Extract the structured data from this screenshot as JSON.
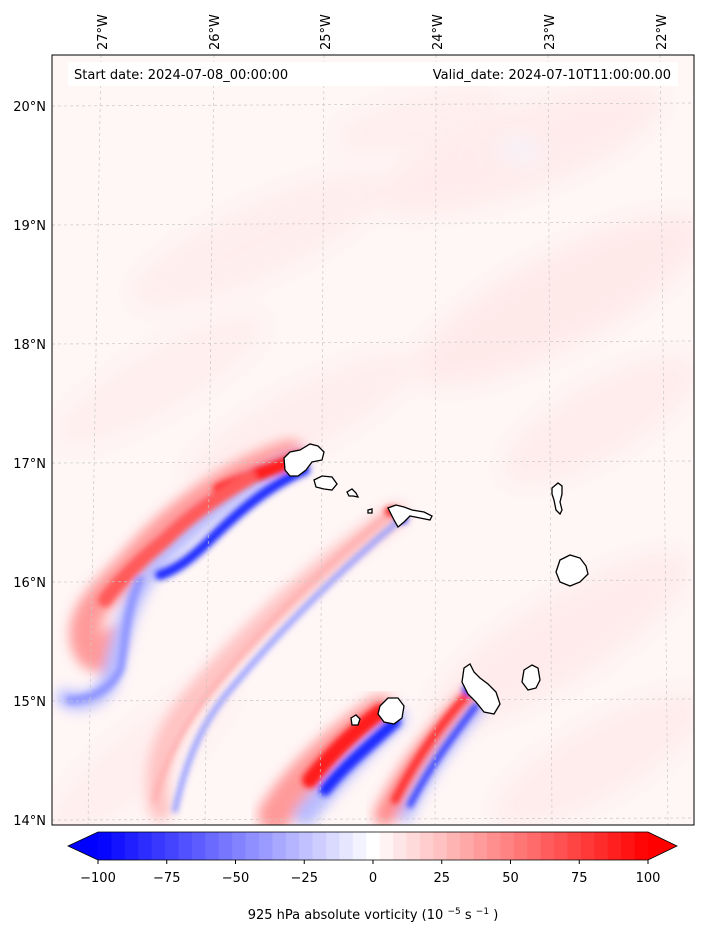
{
  "header": {
    "start_label": "Start date: 2024-07-08_00:00:00",
    "valid_label": "Valid_date: 2024-07-10T11:00:00.00"
  },
  "axes": {
    "lon_ticks": [
      "27°W",
      "26°W",
      "25°W",
      "24°W",
      "23°W",
      "22°W"
    ],
    "lat_ticks": [
      "20°N",
      "19°N",
      "18°N",
      "17°N",
      "16°N",
      "15°N",
      "14°N"
    ],
    "grid": true,
    "lon_range": [
      -27.4,
      -21.8
    ],
    "lat_range": [
      13.95,
      20.45
    ]
  },
  "field": {
    "variable": "925 hPa absolute vorticity",
    "units_prefix": "(10",
    "units_exp1": "−5",
    "units_mid": "s",
    "units_exp2": "−1",
    "units_suffix": ")"
  },
  "colorbar": {
    "min": -100,
    "max": 100,
    "levels": 41,
    "ticks": [
      "−100",
      "−75",
      "−50",
      "−25",
      "0",
      "25",
      "50",
      "75",
      "100"
    ],
    "extend": "both",
    "colors": {
      "low": "#0000ff",
      "mid": "#ffffff",
      "high": "#ff0000"
    }
  },
  "islands": [
    "Santo Antão",
    "São Vicente",
    "Santa Luzia",
    "São Nicolau",
    "Sal",
    "Boa Vista",
    "Fogo",
    "Santiago",
    "Maio",
    "Brava"
  ]
}
